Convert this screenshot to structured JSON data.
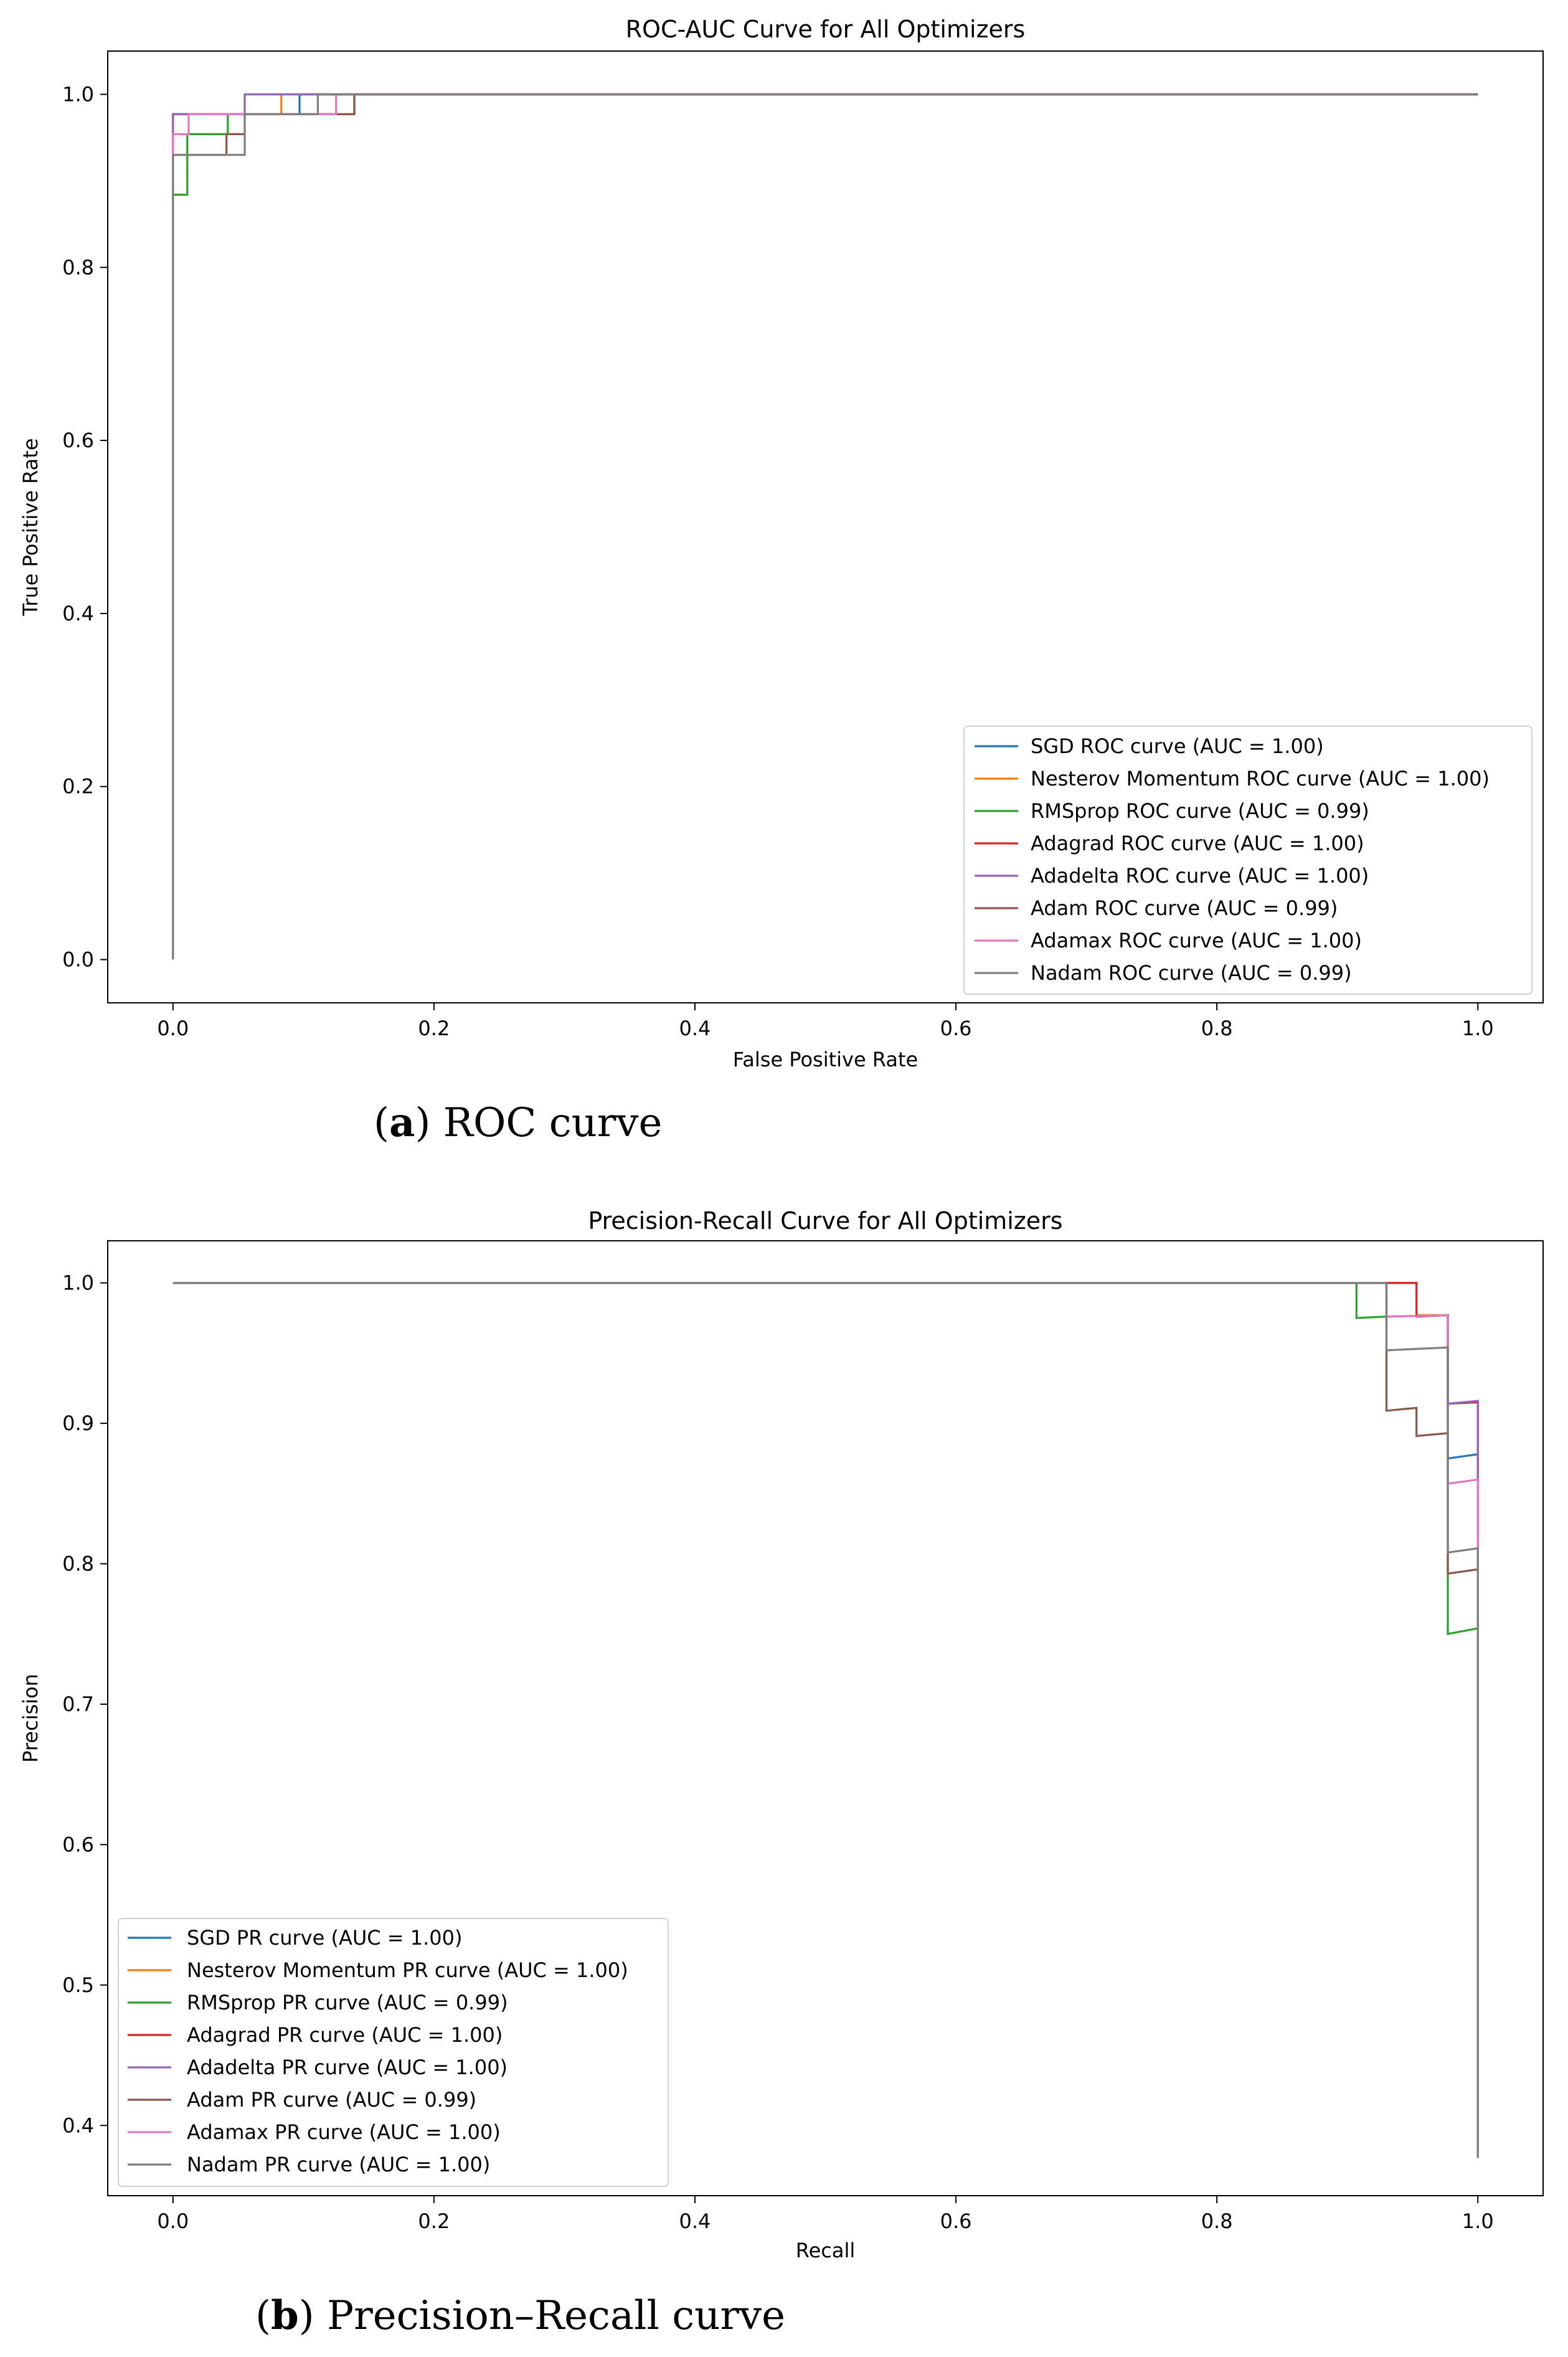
{
  "colors": {
    "SGD": "#1f77b4",
    "Nesterov Momentum": "#ff7f0e",
    "RMSprop": "#2ca02c",
    "Adagrad": "#d62728",
    "Adadelta": "#9467bd",
    "Adam": "#8c564b",
    "Adamax": "#e377c2",
    "Nadam": "#7f7f7f"
  },
  "captions": {
    "a": {
      "letter": "a",
      "text": "ROC curve"
    },
    "b": {
      "letter": "b",
      "text": "Precision–Recall curve"
    }
  },
  "chart_data": [
    {
      "type": "line",
      "title": "ROC-AUC Curve for All Optimizers",
      "xlabel": "False Positive Rate",
      "ylabel": "True Positive Rate",
      "xlim": [
        -0.05,
        1.05
      ],
      "ylim": [
        -0.05,
        1.05
      ],
      "xticks": [
        0.0,
        0.2,
        0.4,
        0.6,
        0.8,
        1.0
      ],
      "yticks": [
        0.0,
        0.2,
        0.4,
        0.6,
        0.8,
        1.0
      ],
      "tick_labels_x": [
        "0.0",
        "0.2",
        "0.4",
        "0.6",
        "0.8",
        "1.0"
      ],
      "tick_labels_y": [
        "0.0",
        "0.2",
        "0.4",
        "0.6",
        "0.8",
        "1.0"
      ],
      "legend_position": "lower-right",
      "series": [
        {
          "name": "SGD",
          "label": "SGD ROC curve (AUC = 1.00)",
          "x": [
            0,
            0,
            0.012,
            0.012,
            0.097,
            0.097,
            1.0
          ],
          "y": [
            0,
            0.977,
            0.977,
            0.977,
            0.977,
            1.0,
            1.0
          ]
        },
        {
          "name": "Nesterov Momentum",
          "label": "Nesterov Momentum ROC curve (AUC = 1.00)",
          "x": [
            0,
            0,
            0.083,
            0.083,
            1.0
          ],
          "y": [
            0,
            0.977,
            0.977,
            1.0,
            1.0
          ]
        },
        {
          "name": "RMSprop",
          "label": "RMSprop ROC curve (AUC = 0.99)",
          "x": [
            0,
            0,
            0.011,
            0.011,
            0.042,
            0.042,
            0.055,
            0.055,
            1.0
          ],
          "y": [
            0,
            0.884,
            0.884,
            0.954,
            0.954,
            0.977,
            0.977,
            1.0,
            1.0
          ]
        },
        {
          "name": "Adagrad",
          "label": "Adagrad ROC curve (AUC = 1.00)",
          "x": [
            0,
            0,
            0.139,
            0.139,
            1.0
          ],
          "y": [
            0,
            0.977,
            0.977,
            1.0,
            1.0
          ]
        },
        {
          "name": "Adadelta",
          "label": "Adadelta ROC curve (AUC = 1.00)",
          "x": [
            0,
            0,
            0.055,
            0.055,
            1.0
          ],
          "y": [
            0,
            0.977,
            0.977,
            1.0,
            1.0
          ]
        },
        {
          "name": "Adam",
          "label": "Adam ROC curve (AUC = 0.99)",
          "x": [
            0,
            0,
            0.041,
            0.041,
            0.055,
            0.055,
            0.111,
            0.111,
            0.139,
            0.139,
            1.0
          ],
          "y": [
            0,
            0.93,
            0.93,
            0.954,
            0.954,
            0.977,
            0.977,
            0.977,
            0.977,
            1.0,
            1.0
          ]
        },
        {
          "name": "Adamax",
          "label": "Adamax ROC curve (AUC = 1.00)",
          "x": [
            0,
            0,
            0.012,
            0.012,
            0.125,
            0.125,
            1.0
          ],
          "y": [
            0,
            0.954,
            0.954,
            0.977,
            0.977,
            1.0,
            1.0
          ]
        },
        {
          "name": "Nadam",
          "label": "Nadam ROC curve (AUC = 0.99)",
          "x": [
            0,
            0,
            0.055,
            0.055,
            0.111,
            0.111,
            1.0
          ],
          "y": [
            0,
            0.93,
            0.93,
            0.977,
            0.977,
            1.0,
            1.0
          ]
        }
      ]
    },
    {
      "type": "line",
      "title": "Precision-Recall Curve for All Optimizers",
      "xlabel": "Recall",
      "ylabel": "Precision",
      "xlim": [
        -0.05,
        1.05
      ],
      "ylim": [
        0.35,
        1.03
      ],
      "xticks": [
        0.0,
        0.2,
        0.4,
        0.6,
        0.8,
        1.0
      ],
      "yticks": [
        0.4,
        0.5,
        0.6,
        0.7,
        0.8,
        0.9,
        1.0
      ],
      "tick_labels_x": [
        "0.0",
        "0.2",
        "0.4",
        "0.6",
        "0.8",
        "1.0"
      ],
      "tick_labels_y": [
        "0.4",
        "0.5",
        "0.6",
        "0.7",
        "0.8",
        "0.9",
        "1.0"
      ],
      "legend_position": "lower-left",
      "series": [
        {
          "name": "SGD",
          "label": "SGD PR curve (AUC = 1.00)",
          "x": [
            0,
            0.953,
            0.953,
            0.977,
            0.977,
            1.0,
            1.0
          ],
          "y": [
            1.0,
            1.0,
            0.977,
            0.977,
            0.875,
            0.878,
            0.377
          ]
        },
        {
          "name": "Nesterov Momentum",
          "label": "Nesterov Momentum PR curve (AUC = 1.00)",
          "x": [
            0,
            0.953,
            0.953,
            0.977,
            0.977,
            1.0,
            1.0
          ],
          "y": [
            1.0,
            1.0,
            0.977,
            0.977,
            0.914,
            0.915,
            0.377
          ]
        },
        {
          "name": "RMSprop",
          "label": "RMSprop PR curve (AUC = 0.99)",
          "x": [
            0,
            0.907,
            0.907,
            0.93,
            0.93,
            0.977,
            0.977,
            1.0,
            1.0
          ],
          "y": [
            1.0,
            1.0,
            0.975,
            0.976,
            0.976,
            0.977,
            0.75,
            0.754,
            0.377
          ]
        },
        {
          "name": "Adagrad",
          "label": "Adagrad PR curve (AUC = 1.00)",
          "x": [
            0,
            0.953,
            0.953,
            0.977,
            0.977,
            1.0,
            1.0
          ],
          "y": [
            1.0,
            1.0,
            0.976,
            0.977,
            0.914,
            0.915,
            0.377
          ]
        },
        {
          "name": "Adadelta",
          "label": "Adadelta PR curve (AUC = 1.00)",
          "x": [
            0,
            0.93,
            0.93,
            0.977,
            0.977,
            1.0,
            1.0
          ],
          "y": [
            1.0,
            1.0,
            0.976,
            0.977,
            0.914,
            0.916,
            0.377
          ]
        },
        {
          "name": "Adam",
          "label": "Adam PR curve (AUC = 0.99)",
          "x": [
            0,
            0.93,
            0.93,
            0.953,
            0.953,
            0.977,
            0.977,
            1.0,
            1.0
          ],
          "y": [
            1.0,
            1.0,
            0.909,
            0.911,
            0.891,
            0.893,
            0.793,
            0.796,
            0.377
          ]
        },
        {
          "name": "Adamax",
          "label": "Adamax PR curve (AUC = 1.00)",
          "x": [
            0,
            0.93,
            0.93,
            0.977,
            0.977,
            1.0,
            1.0
          ],
          "y": [
            1.0,
            1.0,
            0.976,
            0.977,
            0.857,
            0.86,
            0.377
          ]
        },
        {
          "name": "Nadam",
          "label": "Nadam PR curve (AUC = 1.00)",
          "x": [
            0,
            0.93,
            0.93,
            0.977,
            0.977,
            1.0,
            1.0
          ],
          "y": [
            1.0,
            1.0,
            0.952,
            0.954,
            0.808,
            0.811,
            0.377
          ]
        }
      ]
    }
  ]
}
